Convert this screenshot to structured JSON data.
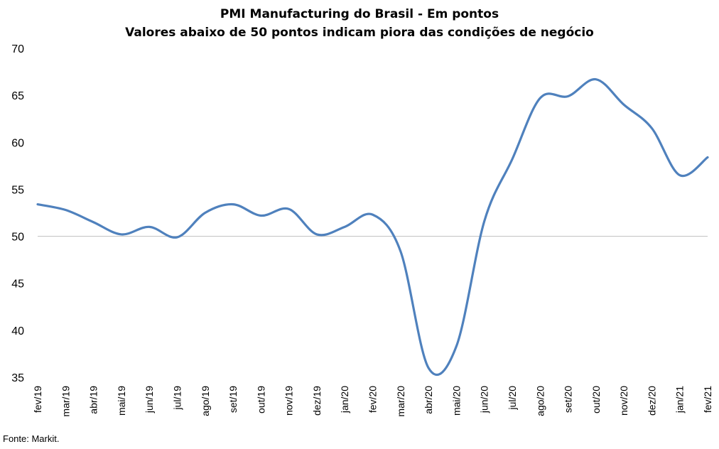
{
  "chart_data": {
    "type": "line",
    "title": "PMI Manufacturing do Brasil - Em pontos",
    "subtitle": "Valores abaixo de 50 pontos indicam piora das condições de negócio",
    "xlabel": "",
    "ylabel": "",
    "ylim": [
      35,
      70
    ],
    "yticks": [
      35,
      40,
      45,
      50,
      55,
      60,
      65,
      70
    ],
    "reference_line": 50,
    "categories": [
      "fev/19",
      "mar/19",
      "abr/19",
      "mai/19",
      "jun/19",
      "jul/19",
      "ago/19",
      "set/19",
      "out/19",
      "nov/19",
      "dez/19",
      "jan/20",
      "fev/20",
      "mar/20",
      "abr/20",
      "mai/20",
      "jun/20",
      "jul/20",
      "ago/20",
      "set/20",
      "out/20",
      "nov/20",
      "dez/20",
      "jan/21",
      "fev/21"
    ],
    "series": [
      {
        "name": "",
        "color": "#4f81bd",
        "values": [
          53.4,
          52.8,
          51.5,
          50.2,
          51.0,
          49.9,
          52.5,
          53.4,
          52.2,
          52.9,
          50.2,
          51.0,
          52.3,
          48.4,
          36.0,
          38.3,
          51.6,
          58.2,
          64.7,
          64.9,
          66.7,
          64.0,
          61.5,
          56.5,
          58.4
        ]
      }
    ],
    "line_color": "#4f81bd",
    "reference_line_color": "#bfbfbf",
    "source": "Fonte: Markit."
  }
}
